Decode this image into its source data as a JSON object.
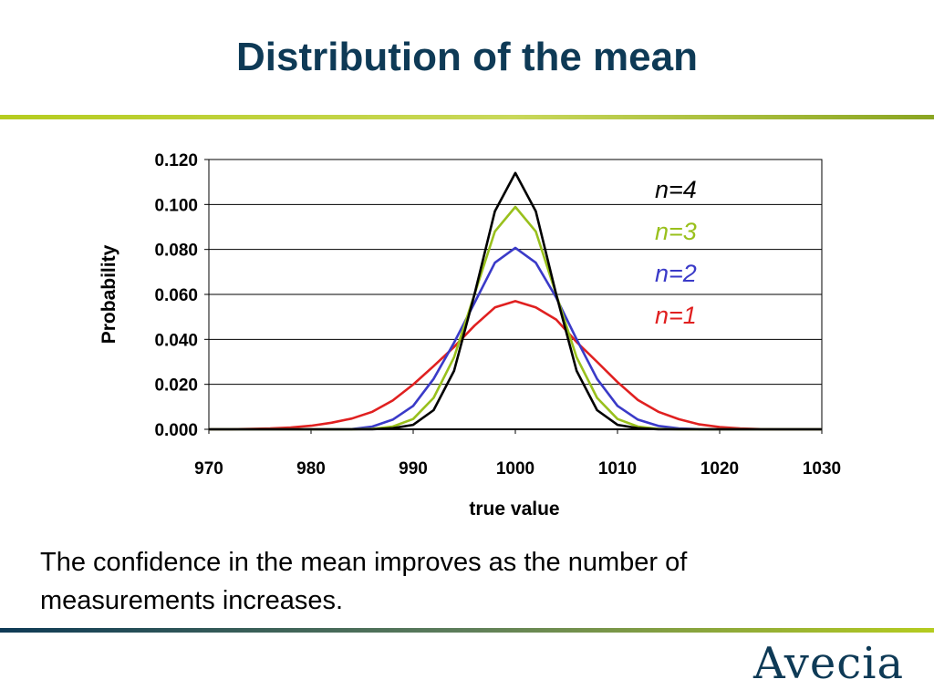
{
  "slide": {
    "title": "Distribution of the mean",
    "caption": "The confidence in the mean improves as the number of measurements increases.",
    "logo_text": "Avecia",
    "accent_colors": {
      "title": "#0e3a56",
      "rule_start": "#0e3a56",
      "rule_end": "#b5cc1f"
    }
  },
  "chart_data": {
    "type": "line",
    "xlabel": "true value",
    "ylabel": "Probability",
    "xlim": [
      970,
      1030
    ],
    "ylim": [
      0,
      0.12
    ],
    "x_ticks": [
      "970",
      "980",
      "990",
      "1000",
      "1010",
      "1020",
      "1030"
    ],
    "y_ticks": [
      "0.000",
      "0.020",
      "0.040",
      "0.060",
      "0.080",
      "0.100",
      "0.120"
    ],
    "grid": "horizontal",
    "legend_placement": "top-right",
    "x": [
      970,
      972,
      974,
      976,
      978,
      980,
      982,
      984,
      986,
      988,
      990,
      992,
      994,
      996,
      998,
      1000,
      1002,
      1004,
      1006,
      1008,
      1010,
      1012,
      1014,
      1016,
      1018,
      1020,
      1022,
      1024,
      1026,
      1028,
      1030
    ],
    "series": [
      {
        "name": "n=1",
        "color": "#e02020",
        "values": [
          0.0,
          0.0,
          0.0002,
          0.0004,
          0.0008,
          0.0016,
          0.0029,
          0.0048,
          0.0078,
          0.0128,
          0.0199,
          0.0281,
          0.0366,
          0.0461,
          0.0542,
          0.057,
          0.0542,
          0.0488,
          0.0388,
          0.03,
          0.021,
          0.013,
          0.0078,
          0.0045,
          0.0022,
          0.001,
          0.0004,
          0.0001,
          0.0,
          0.0,
          0.0
        ]
      },
      {
        "name": "n=2",
        "color": "#3a3ac8",
        "values": [
          0.0,
          0.0,
          0.0,
          0.0,
          0.0,
          0.0,
          0.0,
          0.0001,
          0.0012,
          0.0043,
          0.0104,
          0.0224,
          0.0385,
          0.0562,
          0.0741,
          0.0807,
          0.0741,
          0.0586,
          0.04,
          0.0224,
          0.0104,
          0.0043,
          0.0015,
          0.0004,
          0.0001,
          0.0,
          0.0,
          0.0,
          0.0,
          0.0,
          0.0
        ]
      },
      {
        "name": "n=3",
        "color": "#99c01c",
        "values": [
          0.0,
          0.0,
          0.0,
          0.0,
          0.0,
          0.0,
          0.0,
          0.0,
          0.0002,
          0.0012,
          0.0046,
          0.014,
          0.032,
          0.06,
          0.088,
          0.0989,
          0.088,
          0.06,
          0.032,
          0.014,
          0.0046,
          0.0012,
          0.0002,
          0.0,
          0.0,
          0.0,
          0.0,
          0.0,
          0.0,
          0.0,
          0.0
        ]
      },
      {
        "name": "n=4",
        "color": "#000000",
        "values": [
          0.0,
          0.0,
          0.0,
          0.0,
          0.0,
          0.0,
          0.0,
          0.0,
          0.0,
          0.0005,
          0.002,
          0.0085,
          0.026,
          0.06,
          0.097,
          0.114,
          0.097,
          0.06,
          0.026,
          0.0085,
          0.002,
          0.0005,
          0.0,
          0.0,
          0.0,
          0.0,
          0.0,
          0.0,
          0.0,
          0.0,
          0.0
        ]
      }
    ],
    "legend_order": [
      "n=4",
      "n=3",
      "n=2",
      "n=1"
    ]
  }
}
